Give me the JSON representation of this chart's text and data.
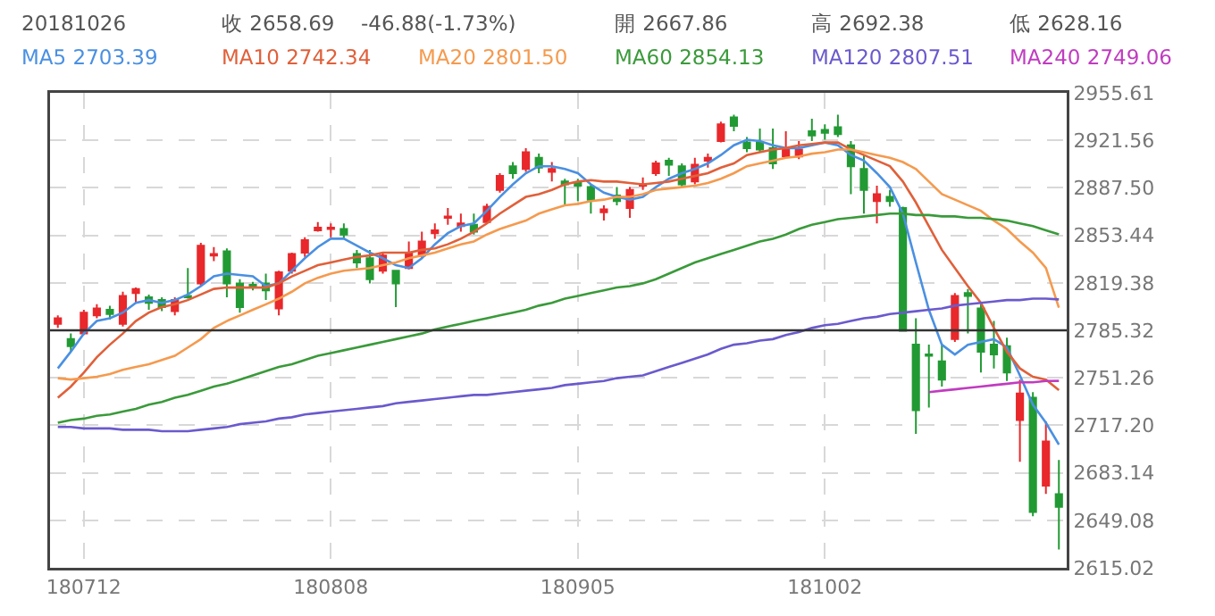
{
  "chart_data": {
    "type": "candlestick",
    "categories": [
      null,
      null,
      "180712",
      null,
      null,
      null,
      null,
      null,
      null,
      null,
      null,
      null,
      null,
      null,
      null,
      null,
      null,
      null,
      null,
      null,
      null,
      "180808",
      null,
      null,
      null,
      null,
      null,
      null,
      null,
      null,
      null,
      null,
      null,
      null,
      null,
      null,
      null,
      null,
      null,
      null,
      "180905",
      null,
      null,
      null,
      null,
      null,
      null,
      null,
      null,
      null,
      null,
      null,
      null,
      null,
      null,
      null,
      null,
      null,
      null,
      "181002",
      null,
      null,
      null,
      null,
      null,
      null,
      null,
      null,
      null,
      null,
      null,
      null,
      null,
      null,
      null,
      null,
      null,
      null
    ],
    "ohlc": [
      [
        2790,
        2796,
        2787,
        2794
      ],
      [
        2779,
        2783,
        2770,
        2774
      ],
      [
        2783,
        2800,
        2782,
        2798
      ],
      [
        2796,
        2804,
        2794,
        2801
      ],
      [
        2800,
        2803,
        2793,
        2797
      ],
      [
        2790,
        2813,
        2788,
        2810
      ],
      [
        2812,
        2816,
        2805,
        2815
      ],
      [
        2809,
        2811,
        2800,
        2805
      ],
      [
        2807,
        2809,
        2799,
        2802
      ],
      [
        2799,
        2809,
        2796,
        2807
      ],
      [
        2810,
        2830,
        2808,
        2809
      ],
      [
        2819,
        2848,
        2817,
        2846
      ],
      [
        2839,
        2845,
        2835,
        2840
      ],
      [
        2842,
        2844,
        2809,
        2819
      ],
      [
        2819,
        2822,
        2798,
        2802
      ],
      [
        2818,
        2820,
        2814,
        2816
      ],
      [
        2819,
        2826,
        2807,
        2814
      ],
      [
        2801,
        2828,
        2796,
        2827
      ],
      [
        2828,
        2841,
        2826,
        2840
      ],
      [
        2841,
        2852,
        2838,
        2850
      ],
      [
        2857,
        2863,
        2856,
        2859
      ],
      [
        2858,
        2862,
        2852,
        2859
      ],
      [
        2858,
        2862,
        2851,
        2854
      ],
      [
        2840,
        2843,
        2830,
        2834
      ],
      [
        2837,
        2843,
        2819,
        2822
      ],
      [
        2828,
        2841,
        2826,
        2839
      ],
      [
        2828,
        2828,
        2802,
        2819
      ],
      [
        2830,
        2849,
        2829,
        2841
      ],
      [
        2839,
        2856,
        2837,
        2849
      ],
      [
        2855,
        2862,
        2851,
        2857
      ],
      [
        2866,
        2873,
        2861,
        2867
      ],
      [
        2860,
        2869,
        2856,
        2862
      ],
      [
        2861,
        2869,
        2854,
        2856
      ],
      [
        2863,
        2876,
        2862,
        2874
      ],
      [
        2886,
        2898,
        2884,
        2896
      ],
      [
        2903,
        2906,
        2894,
        2898
      ],
      [
        2901,
        2916,
        2899,
        2913
      ],
      [
        2909,
        2912,
        2898,
        2902
      ],
      [
        2899,
        2906,
        2892,
        2901
      ],
      [
        2892,
        2894,
        2875,
        2890
      ],
      [
        2891,
        2894,
        2878,
        2889
      ],
      [
        2888,
        2890,
        2869,
        2879
      ],
      [
        2870,
        2875,
        2864,
        2872
      ],
      [
        2882,
        2888,
        2875,
        2878
      ],
      [
        2873,
        2888,
        2866,
        2886
      ],
      [
        2889,
        2895,
        2886,
        2890
      ],
      [
        2898,
        2907,
        2896,
        2905
      ],
      [
        2907,
        2909,
        2896,
        2904
      ],
      [
        2903,
        2905,
        2888,
        2890
      ],
      [
        2892,
        2909,
        2890,
        2904
      ],
      [
        2907,
        2912,
        2902,
        2909
      ],
      [
        2921,
        2935,
        2920,
        2933
      ],
      [
        2938,
        2940,
        2928,
        2932
      ],
      [
        2920,
        2924,
        2913,
        2916
      ],
      [
        2920,
        2930,
        2913,
        2915
      ],
      [
        2916,
        2930,
        2901,
        2905
      ],
      [
        2910,
        2928,
        2909,
        2916
      ],
      [
        2910,
        2921,
        2908,
        2915
      ],
      [
        2928,
        2937,
        2921,
        2925
      ],
      [
        2929,
        2933,
        2922,
        2927
      ],
      [
        2931,
        2940,
        2924,
        2926
      ],
      [
        2918,
        2921,
        2883,
        2903
      ],
      [
        2901,
        2911,
        2869,
        2886
      ],
      [
        2878,
        2889,
        2862,
        2883
      ],
      [
        2881,
        2886,
        2874,
        2878
      ],
      [
        2873,
        2874,
        2785,
        2785
      ],
      [
        2775,
        2794,
        2711,
        2728
      ],
      [
        2768,
        2775,
        2730,
        2767
      ],
      [
        2763,
        2775,
        2745,
        2750
      ],
      [
        2779,
        2812,
        2777,
        2810
      ],
      [
        2812,
        2815,
        2783,
        2810
      ],
      [
        2801,
        2804,
        2755,
        2770
      ],
      [
        2775,
        2792,
        2758,
        2768
      ],
      [
        2774,
        2780,
        2749,
        2755
      ],
      [
        2721,
        2750,
        2691,
        2740
      ],
      [
        2737,
        2741,
        2652,
        2655
      ],
      [
        2674,
        2720,
        2668,
        2705.57
      ],
      [
        2667.86,
        2692.38,
        2628.16,
        2658.69
      ]
    ],
    "colors": [
      "#e8282b",
      "#229a34",
      "#e8282b",
      "#e8282b",
      "#229a34",
      "#e8282b",
      "#e8282b",
      "#229a34",
      "#229a34",
      "#e8282b",
      "#229a34",
      "#e8282b",
      "#e8282b",
      "#229a34",
      "#229a34",
      "#229a34",
      "#229a34",
      "#e8282b",
      "#e8282b",
      "#e8282b",
      "#e8282b",
      "#e8282b",
      "#229a34",
      "#229a34",
      "#229a34",
      "#e8282b",
      "#229a34",
      "#e8282b",
      "#e8282b",
      "#e8282b",
      "#e8282b",
      "#e8282b",
      "#229a34",
      "#e8282b",
      "#e8282b",
      "#229a34",
      "#e8282b",
      "#229a34",
      "#e8282b",
      "#229a34",
      "#229a34",
      "#229a34",
      "#e8282b",
      "#229a34",
      "#e8282b",
      "#e8282b",
      "#e8282b",
      "#229a34",
      "#229a34",
      "#e8282b",
      "#e8282b",
      "#e8282b",
      "#229a34",
      "#229a34",
      "#229a34",
      "#229a34",
      "#e8282b",
      "#e8282b",
      "#229a34",
      "#229a34",
      "#229a34",
      "#229a34",
      "#229a34",
      "#e8282b",
      "#229a34",
      "#229a34",
      "#229a34",
      "#229a34",
      "#229a34",
      "#e8282b",
      "#229a34",
      "#229a34",
      "#229a34",
      "#229a34",
      "#e8282b",
      "#229a34",
      "#e8282b",
      "#229a34"
    ],
    "series": [
      {
        "name": "MA5 2703.39",
        "type": "line",
        "color": "#4a90e2",
        "values": [
          2758,
          2770,
          2783,
          2792,
          2794,
          2798,
          2805,
          2807,
          2805,
          2807,
          2811,
          2817,
          2824,
          2826,
          2825,
          2824,
          2817,
          2819,
          2828,
          2837,
          2845,
          2851,
          2851,
          2846,
          2841,
          2837,
          2832,
          2830,
          2837,
          2847,
          2855,
          2860,
          2862,
          2871,
          2881,
          2890,
          2898,
          2903,
          2903,
          2901,
          2898,
          2890,
          2884,
          2881,
          2879,
          2881,
          2888,
          2894,
          2898,
          2901,
          2905,
          2911,
          2918,
          2922,
          2921,
          2918,
          2916,
          2916,
          2918,
          2920,
          2918,
          2911,
          2907,
          2898,
          2888,
          2869,
          2834,
          2800,
          2775,
          2768,
          2775,
          2777,
          2779,
          2773,
          2753,
          2732,
          2719,
          2703.39
        ]
      },
      {
        "name": "MA10 2742.34",
        "type": "line",
        "color": "#e0603a",
        "values": [
          2737,
          2745,
          2755,
          2766,
          2775,
          2783,
          2792,
          2798,
          2802,
          2804,
          2807,
          2811,
          2815,
          2816,
          2816,
          2816,
          2816,
          2819,
          2824,
          2828,
          2832,
          2834,
          2836,
          2838,
          2839,
          2841,
          2841,
          2841,
          2843,
          2844,
          2847,
          2851,
          2856,
          2862,
          2869,
          2875,
          2881,
          2883,
          2886,
          2890,
          2892,
          2893,
          2892,
          2892,
          2891,
          2890,
          2891,
          2892,
          2894,
          2896,
          2898,
          2902,
          2905,
          2911,
          2913,
          2915,
          2916,
          2918,
          2919,
          2920,
          2920,
          2915,
          2911,
          2907,
          2903,
          2892,
          2877,
          2860,
          2843,
          2830,
          2817,
          2805,
          2787,
          2770,
          2758,
          2752,
          2750,
          2742.34
        ]
      },
      {
        "name": "MA20 2801.50",
        "type": "line",
        "color": "#f59a4e",
        "values": [
          2751,
          2750,
          2751,
          2752,
          2754,
          2757,
          2759,
          2761,
          2764,
          2767,
          2773,
          2779,
          2787,
          2792,
          2796,
          2800,
          2804,
          2808,
          2813,
          2819,
          2823,
          2826,
          2828,
          2829,
          2830,
          2832,
          2834,
          2837,
          2839,
          2841,
          2844,
          2847,
          2849,
          2854,
          2858,
          2861,
          2864,
          2869,
          2872,
          2875,
          2876,
          2878,
          2879,
          2881,
          2881,
          2883,
          2886,
          2887,
          2888,
          2889,
          2891,
          2894,
          2898,
          2903,
          2905,
          2907,
          2909,
          2910,
          2912,
          2913,
          2915,
          2915,
          2913,
          2911,
          2909,
          2906,
          2901,
          2892,
          2883,
          2879,
          2875,
          2871,
          2864,
          2858,
          2849,
          2841,
          2830,
          2801.5
        ]
      },
      {
        "name": "MA60 2854.13",
        "type": "line",
        "color": "#3a9a3a",
        "values": [
          2719,
          2721,
          2722,
          2724,
          2725,
          2727,
          2729,
          2732,
          2734,
          2737,
          2739,
          2742,
          2745,
          2747,
          2750,
          2753,
          2756,
          2759,
          2761,
          2764,
          2767,
          2769,
          2771,
          2773,
          2775,
          2777,
          2779,
          2781,
          2783,
          2786,
          2788,
          2790,
          2792,
          2794,
          2796,
          2798,
          2800,
          2803,
          2805,
          2808,
          2810,
          2812,
          2814,
          2816,
          2817,
          2819,
          2822,
          2826,
          2830,
          2834,
          2837,
          2840,
          2843,
          2846,
          2849,
          2851,
          2854,
          2858,
          2861,
          2863,
          2865,
          2866,
          2867,
          2868,
          2869,
          2869,
          2868,
          2868,
          2867,
          2867,
          2866,
          2866,
          2865,
          2864,
          2862,
          2860,
          2857,
          2854.13
        ]
      },
      {
        "name": "MA120 2807.51",
        "type": "line",
        "color": "#6a5acd",
        "values": [
          2716,
          2716,
          2715,
          2715,
          2715,
          2714,
          2714,
          2714,
          2713,
          2713,
          2713,
          2714,
          2715,
          2716,
          2718,
          2719,
          2720,
          2722,
          2723,
          2725,
          2726,
          2727,
          2728,
          2729,
          2730,
          2731,
          2733,
          2734,
          2735,
          2736,
          2737,
          2738,
          2739,
          2739,
          2740,
          2741,
          2742,
          2743,
          2744,
          2746,
          2747,
          2748,
          2749,
          2751,
          2752,
          2753,
          2756,
          2759,
          2762,
          2765,
          2768,
          2772,
          2775,
          2776,
          2778,
          2779,
          2782,
          2784,
          2787,
          2789,
          2790,
          2792,
          2794,
          2795,
          2797,
          2798,
          2799,
          2800,
          2801,
          2803,
          2804,
          2805,
          2806,
          2807,
          2807,
          2808,
          2808,
          2807.51
        ]
      },
      {
        "name": "MA240 2749.06",
        "type": "line",
        "color": "#c03cc0",
        "values": [
          null,
          null,
          null,
          null,
          null,
          null,
          null,
          null,
          null,
          null,
          null,
          null,
          null,
          null,
          null,
          null,
          null,
          null,
          null,
          null,
          null,
          null,
          null,
          null,
          null,
          null,
          null,
          null,
          null,
          null,
          null,
          null,
          null,
          null,
          null,
          null,
          null,
          null,
          null,
          null,
          null,
          null,
          null,
          null,
          null,
          null,
          null,
          null,
          null,
          null,
          null,
          null,
          null,
          null,
          null,
          null,
          null,
          null,
          null,
          null,
          null,
          null,
          null,
          null,
          null,
          null,
          null,
          2741,
          2742,
          2743,
          2744,
          2745,
          2746,
          2747,
          2748,
          2748,
          2749,
          2749.06
        ]
      }
    ],
    "ylim": [
      2615.02,
      2955.61
    ],
    "yticks": [
      2615.02,
      2649.08,
      2683.14,
      {
        "value": 2717.2,
        "label": "2717.20"
      },
      2751.26,
      2785.32,
      2819.38,
      2853.44,
      {
        "value": 2887.5,
        "label": "2887.50"
      },
      2921.56,
      2955.61
    ],
    "grid": true,
    "ref_lines": [
      {
        "axis": "y",
        "value": 2785.32,
        "color": "#333333"
      }
    ],
    "annotations": [
      "20181026",
      "收 2658.69",
      "-46.88(-1.73%)",
      "開 2667.86",
      "高 2692.38",
      "低 2628.16"
    ]
  }
}
